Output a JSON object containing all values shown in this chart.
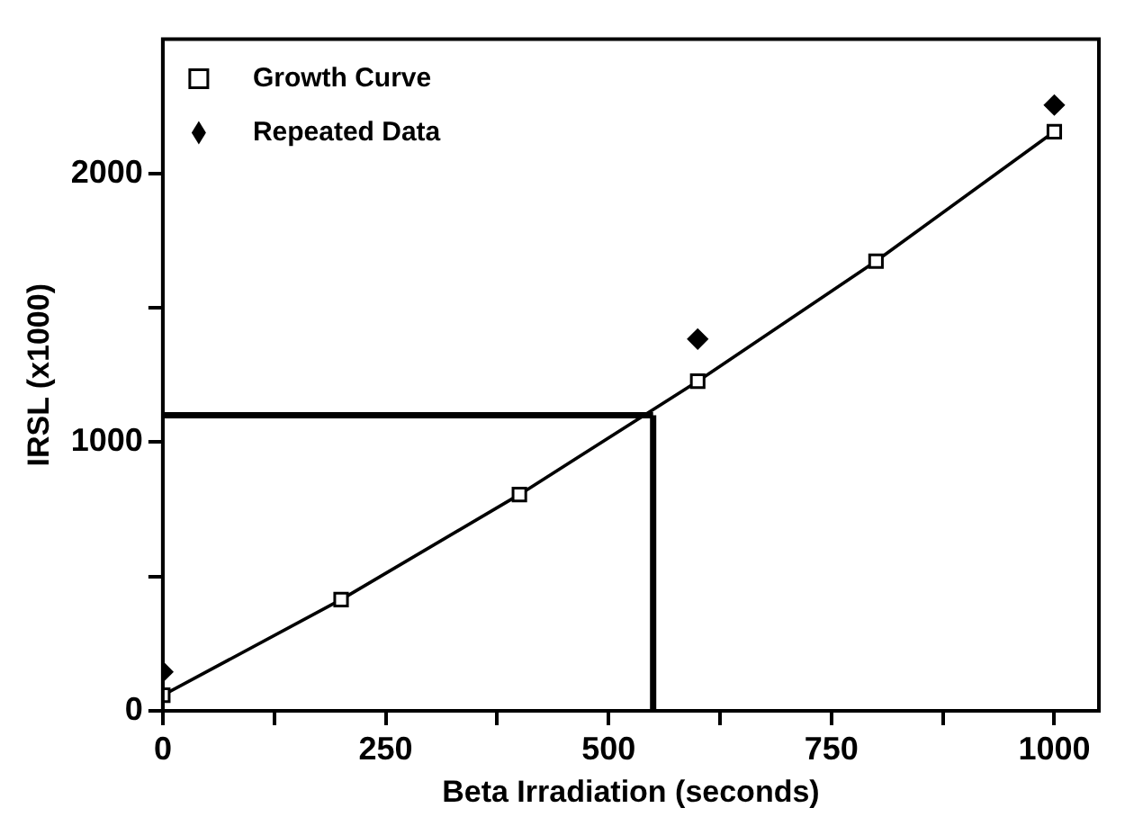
{
  "chart_data": {
    "type": "line",
    "xlabel": "Beta Irradiation (seconds)",
    "ylabel": "IRSL (x1000)",
    "xlim": [
      0,
      1050
    ],
    "ylim": [
      0,
      2500
    ],
    "xticks": [
      0,
      {
        "value": 125,
        "label": null
      },
      250,
      {
        "value": 375,
        "label": null
      },
      500,
      {
        "value": 625,
        "label": null
      },
      750,
      {
        "value": 875,
        "label": null
      },
      1000
    ],
    "yticks": [
      0,
      {
        "value": 500,
        "label": null
      },
      1000,
      {
        "value": 1500,
        "label": null
      },
      2000
    ],
    "grid": false,
    "legend": "top left",
    "series": [
      {
        "name": "Growth Curve",
        "type": "line",
        "color": "#000000",
        "marker": "square",
        "x": [
          0,
          200,
          400,
          600,
          800,
          1000
        ],
        "values": [
          58,
          414,
          805,
          1227,
          1674,
          2156
        ]
      },
      {
        "name": "Repeated Data",
        "type": "scatter",
        "color": "#000000",
        "marker": "diamond",
        "x": [
          0,
          600,
          1000
        ],
        "values": [
          145,
          1384,
          2255
        ]
      }
    ],
    "ref_lines": [
      {
        "axis": "y",
        "value": 1100,
        "color": "#000000"
      },
      {
        "axis": "x",
        "value": 550,
        "color": "#000000"
      }
    ]
  }
}
